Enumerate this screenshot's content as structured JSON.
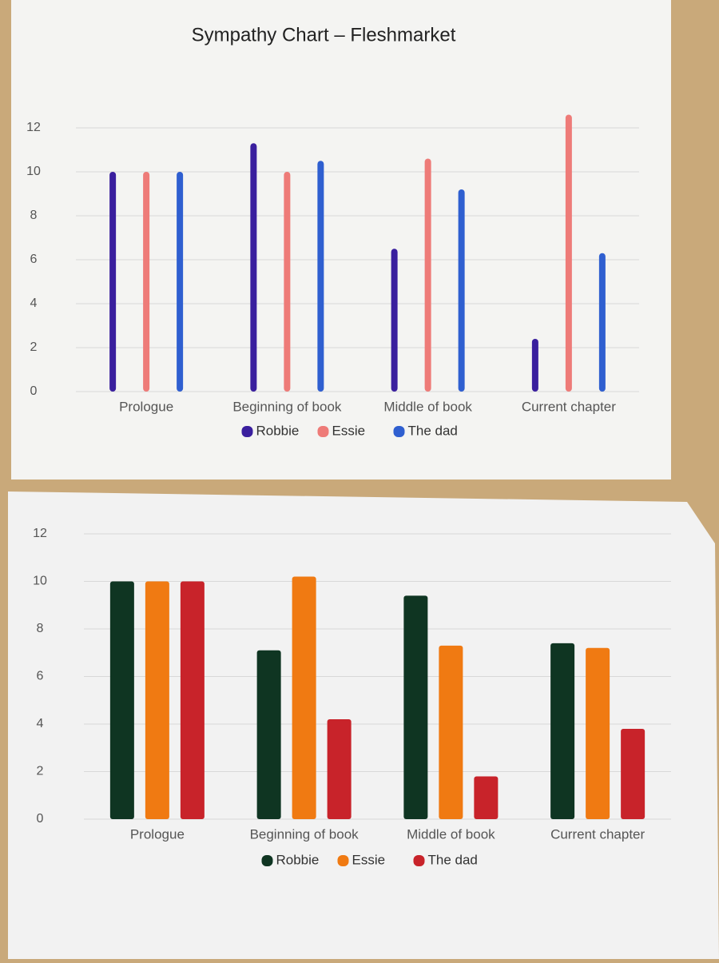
{
  "chart_data": [
    {
      "type": "bar",
      "title": "Sympathy Chart – Fleshmarket",
      "categories": [
        "Prologue",
        "Beginning of book",
        "Middle of book",
        "Current chapter"
      ],
      "series": [
        {
          "name": "Robbie",
          "color": "#3a1f9e",
          "values": [
            10,
            11.3,
            6.5,
            2.4
          ]
        },
        {
          "name": "Essie",
          "color": "#ee7b78",
          "values": [
            10,
            10,
            10.6,
            12.6
          ]
        },
        {
          "name": "The dad",
          "color": "#2f5fd0",
          "values": [
            10,
            10.5,
            9.2,
            6.3
          ]
        }
      ],
      "ylim": [
        0,
        12
      ],
      "yticks": [
        0,
        2,
        4,
        6,
        8,
        10,
        12
      ],
      "grid": true,
      "legend": "bottom"
    },
    {
      "type": "bar",
      "categories": [
        "Prologue",
        "Beginning of book",
        "Middle of book",
        "Current chapter"
      ],
      "series": [
        {
          "name": "Robbie",
          "color": "#0f3522",
          "values": [
            10,
            7.1,
            9.4,
            7.4
          ]
        },
        {
          "name": "Essie",
          "color": "#f07a12",
          "values": [
            10,
            10.2,
            7.3,
            7.2
          ]
        },
        {
          "name": "The dad",
          "color": "#c8232a",
          "values": [
            10,
            4.2,
            1.8,
            3.8
          ]
        }
      ],
      "ylim": [
        0,
        12
      ],
      "yticks": [
        0,
        2,
        4,
        6,
        8,
        10,
        12
      ],
      "grid": true,
      "legend": "bottom"
    }
  ]
}
